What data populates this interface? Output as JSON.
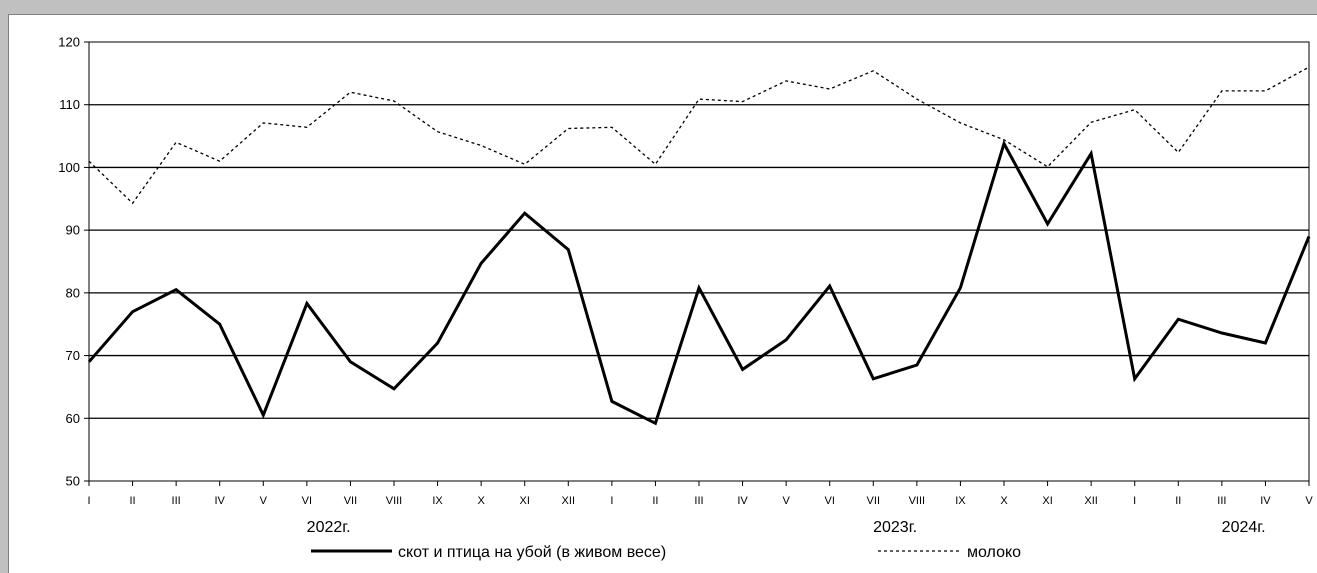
{
  "chart_data": {
    "type": "line",
    "title": "",
    "xlabel": "",
    "ylabel": "",
    "ylim": [
      50,
      120
    ],
    "yticks": [
      50,
      60,
      70,
      80,
      90,
      100,
      110,
      120
    ],
    "grid": true,
    "categories": [
      "I",
      "II",
      "III",
      "IV",
      "V",
      "VI",
      "VII",
      "VIII",
      "IX",
      "X",
      "XI",
      "XII",
      "I",
      "II",
      "III",
      "IV",
      "V",
      "VI",
      "VII",
      "VIII",
      "IX",
      "X",
      "XI",
      "XII",
      "I",
      "II",
      "III",
      "IV",
      "V"
    ],
    "year_labels": [
      {
        "text": "2022г.",
        "index": 5.5
      },
      {
        "text": "2023г.",
        "index": 18.5
      },
      {
        "text": "2024г.",
        "index": 26.5
      }
    ],
    "series": [
      {
        "name": "скот и птица на убой  (в живом весе)",
        "style": "solid",
        "color": "#000000",
        "values": [
          69.0,
          77.0,
          80.5,
          75.0,
          60.5,
          78.3,
          69.0,
          64.7,
          72.0,
          84.7,
          92.7,
          86.9,
          62.7,
          59.2,
          80.8,
          67.8,
          72.5,
          81.1,
          66.3,
          68.5,
          80.8,
          103.8,
          91.0,
          102.2,
          66.3,
          75.8,
          73.6,
          72.0,
          89.0
        ]
      },
      {
        "name": "молоко",
        "style": "dotted",
        "color": "#000000",
        "values": [
          101.0,
          94.3,
          104.0,
          101.0,
          107.1,
          106.4,
          112.0,
          110.6,
          105.7,
          103.5,
          100.5,
          106.2,
          106.4,
          100.5,
          110.9,
          110.5,
          113.8,
          112.5,
          115.4,
          110.9,
          107.1,
          104.4,
          100.1,
          107.2,
          109.2,
          102.4,
          112.2,
          112.2,
          116.0
        ]
      }
    ],
    "legend_position": "bottom"
  }
}
